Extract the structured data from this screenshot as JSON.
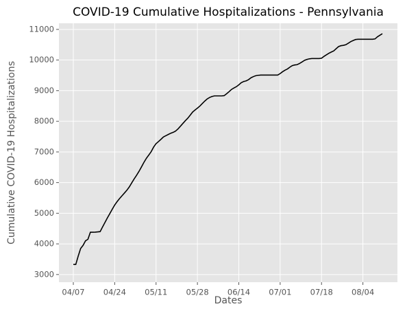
{
  "chart_data": {
    "type": "line",
    "title": "COVID-19 Cumulative Hospitalizations - Pennsylvania",
    "x_label": "Dates",
    "y_label": "Cumulative COVID-19 Hospitalizations",
    "x": [
      "04/07",
      "04/08",
      "04/09",
      "04/10",
      "04/11",
      "04/12",
      "04/13",
      "04/14",
      "04/15",
      "04/16",
      "04/17",
      "04/18",
      "04/19",
      "04/20",
      "04/21",
      "04/22",
      "04/23",
      "04/24",
      "04/25",
      "04/26",
      "04/27",
      "04/28",
      "04/29",
      "04/30",
      "05/01",
      "05/02",
      "05/03",
      "05/04",
      "05/05",
      "05/06",
      "05/07",
      "05/08",
      "05/09",
      "05/10",
      "05/11",
      "05/12",
      "05/13",
      "05/14",
      "05/15",
      "05/16",
      "05/17",
      "05/18",
      "05/19",
      "05/20",
      "05/21",
      "05/22",
      "05/23",
      "05/24",
      "05/25",
      "05/26",
      "05/27",
      "05/28",
      "05/29",
      "05/30",
      "05/31",
      "06/01",
      "06/02",
      "06/03",
      "06/04",
      "06/05",
      "06/06",
      "06/07",
      "06/08",
      "06/09",
      "06/10",
      "06/11",
      "06/12",
      "06/13",
      "06/14",
      "06/15",
      "06/16",
      "06/17",
      "06/18",
      "06/19",
      "06/20",
      "06/21",
      "06/22",
      "06/23",
      "06/24",
      "06/25",
      "06/26",
      "06/27",
      "06/28",
      "06/29",
      "06/30",
      "07/01",
      "07/02",
      "07/03",
      "07/04",
      "07/05",
      "07/06",
      "07/07",
      "07/08",
      "07/09",
      "07/10",
      "07/11",
      "07/12",
      "07/13",
      "07/14",
      "07/15",
      "07/16",
      "07/17",
      "07/18",
      "07/19",
      "07/20",
      "07/21",
      "07/22",
      "07/23",
      "07/24",
      "07/25",
      "07/26",
      "07/27",
      "07/28",
      "07/29",
      "07/30",
      "07/31",
      "08/01",
      "08/02",
      "08/03",
      "08/04",
      "08/05",
      "08/06",
      "08/07",
      "08/08",
      "08/09",
      "08/10",
      "08/11",
      "08/12"
    ],
    "values": [
      3330,
      3330,
      3600,
      3850,
      3950,
      4100,
      4150,
      4380,
      4380,
      4385,
      4390,
      4400,
      4550,
      4700,
      4850,
      4990,
      5130,
      5270,
      5380,
      5480,
      5570,
      5660,
      5750,
      5860,
      5990,
      6120,
      6240,
      6370,
      6510,
      6660,
      6790,
      6900,
      7010,
      7160,
      7270,
      7340,
      7410,
      7490,
      7530,
      7570,
      7610,
      7640,
      7680,
      7750,
      7840,
      7930,
      8020,
      8100,
      8200,
      8300,
      8370,
      8430,
      8500,
      8580,
      8660,
      8730,
      8780,
      8810,
      8830,
      8830,
      8830,
      8830,
      8840,
      8900,
      8970,
      9040,
      9090,
      9130,
      9190,
      9260,
      9300,
      9320,
      9360,
      9420,
      9460,
      9490,
      9500,
      9510,
      9510,
      9510,
      9510,
      9510,
      9510,
      9510,
      9510,
      9560,
      9620,
      9670,
      9710,
      9770,
      9820,
      9840,
      9850,
      9890,
      9940,
      9990,
      10020,
      10040,
      10050,
      10050,
      10050,
      10050,
      10060,
      10120,
      10170,
      10220,
      10260,
      10300,
      10370,
      10440,
      10470,
      10480,
      10500,
      10550,
      10600,
      10640,
      10670,
      10680,
      10680,
      10680,
      10680,
      10680,
      10680,
      10680,
      10690,
      10760,
      10810,
      10860
    ],
    "color": "#000000",
    "xticks": [
      "04/07",
      "04/24",
      "05/11",
      "05/28",
      "06/14",
      "07/01",
      "07/18",
      "08/04"
    ],
    "ylim": [
      2750,
      11200
    ],
    "yticks": [
      3000,
      4000,
      5000,
      6000,
      7000,
      8000,
      9000,
      10000,
      11000
    ],
    "grid": true
  }
}
